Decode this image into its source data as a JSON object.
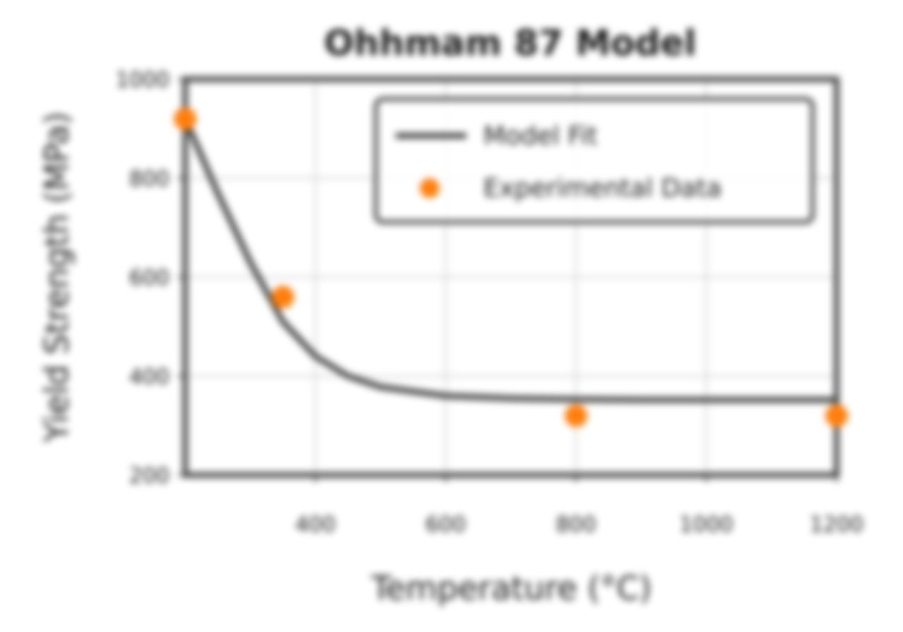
{
  "chart_data": {
    "type": "scatter",
    "title": "Ohhmam 87 Model",
    "xlabel": "Temperature (°C)",
    "ylabel": "Yield Strength (MPa)",
    "xlim": [
      200,
      1200
    ],
    "ylim": [
      200,
      1000
    ],
    "xticks": [
      400,
      600,
      800,
      1000,
      1200
    ],
    "xtick_labels": [
      "400",
      "600",
      "800",
      "1000",
      "1200"
    ],
    "yticks": [
      200,
      400,
      600,
      800,
      1000
    ],
    "ytick_labels": [
      "200",
      "400",
      "600",
      "800",
      "1000"
    ],
    "grid": true,
    "legend": {
      "placement": "top-right",
      "entries": [
        "Model Fit",
        "Experimental Data"
      ]
    },
    "series": [
      {
        "name": "Model Fit",
        "kind": "line",
        "color": "#404040",
        "x": [
          200,
          250,
          300,
          350,
          400,
          450,
          500,
          600,
          700,
          800,
          900,
          1000,
          1100,
          1200
        ],
        "y": [
          920,
          770,
          630,
          510,
          440,
          400,
          378,
          360,
          355,
          353,
          352,
          352,
          352,
          352
        ]
      },
      {
        "name": "Experimental Data",
        "kind": "scatter",
        "color": "#ff7f0e",
        "x": [
          200,
          350,
          800,
          1200
        ],
        "y": [
          920,
          560,
          320,
          320
        ]
      }
    ]
  }
}
